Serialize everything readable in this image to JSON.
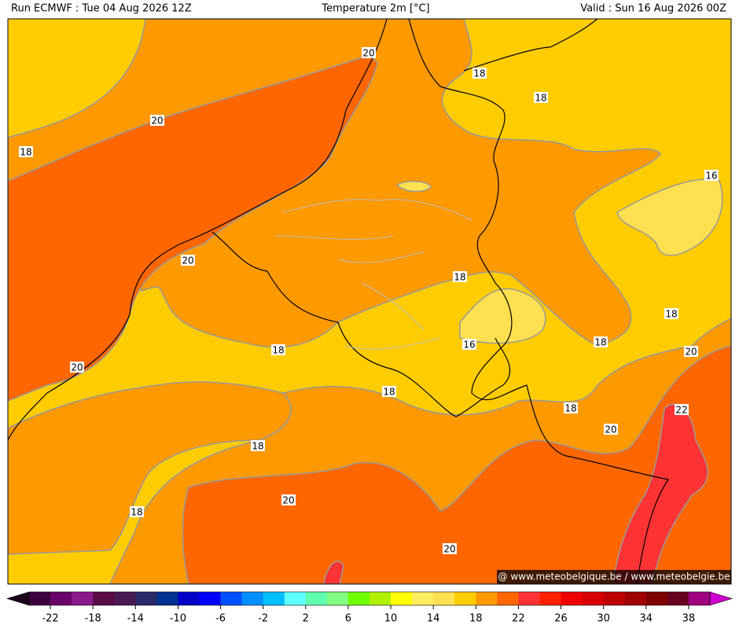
{
  "header": {
    "run": "Run ECMWF : Tue 04 Aug 2026 12Z",
    "title": "Temperature 2m [°C]",
    "valid": "Valid : Sun 16 Aug 2026 00Z"
  },
  "contour_labels": [
    "20",
    "20",
    "18",
    "20",
    "18",
    "18",
    "16",
    "18",
    "18",
    "18",
    "16",
    "18",
    "20",
    "20",
    "18",
    "18",
    "22",
    "20",
    "18",
    "20",
    "18",
    "20"
  ],
  "watermark": "@ www.meteobelgique.be / www.meteobelgie.be",
  "colorbar": {
    "range": [
      -24,
      40
    ],
    "ticks": [
      -22,
      -18,
      -14,
      -10,
      -6,
      -2,
      2,
      6,
      10,
      14,
      18,
      22,
      26,
      30,
      34,
      38
    ],
    "colors": [
      "#3c0040",
      "#6a006a",
      "#8a1a8a",
      "#5a0a45",
      "#4a1a55",
      "#2a2a6a",
      "#003090",
      "#0000c8",
      "#0000ff",
      "#0050ff",
      "#0090ff",
      "#00c0ff",
      "#60ffff",
      "#60ffb0",
      "#80ff80",
      "#70ff00",
      "#b0f000",
      "#ffff00",
      "#ffee60",
      "#ffe050",
      "#ffcc00",
      "#ff9900",
      "#ff6600",
      "#ff3333",
      "#ff2000",
      "#f00000",
      "#d80000",
      "#c00000",
      "#a00000",
      "#800000",
      "#6a0020",
      "#a00080"
    ],
    "under_color": "#1a001a",
    "over_color": "#d000d0"
  }
}
